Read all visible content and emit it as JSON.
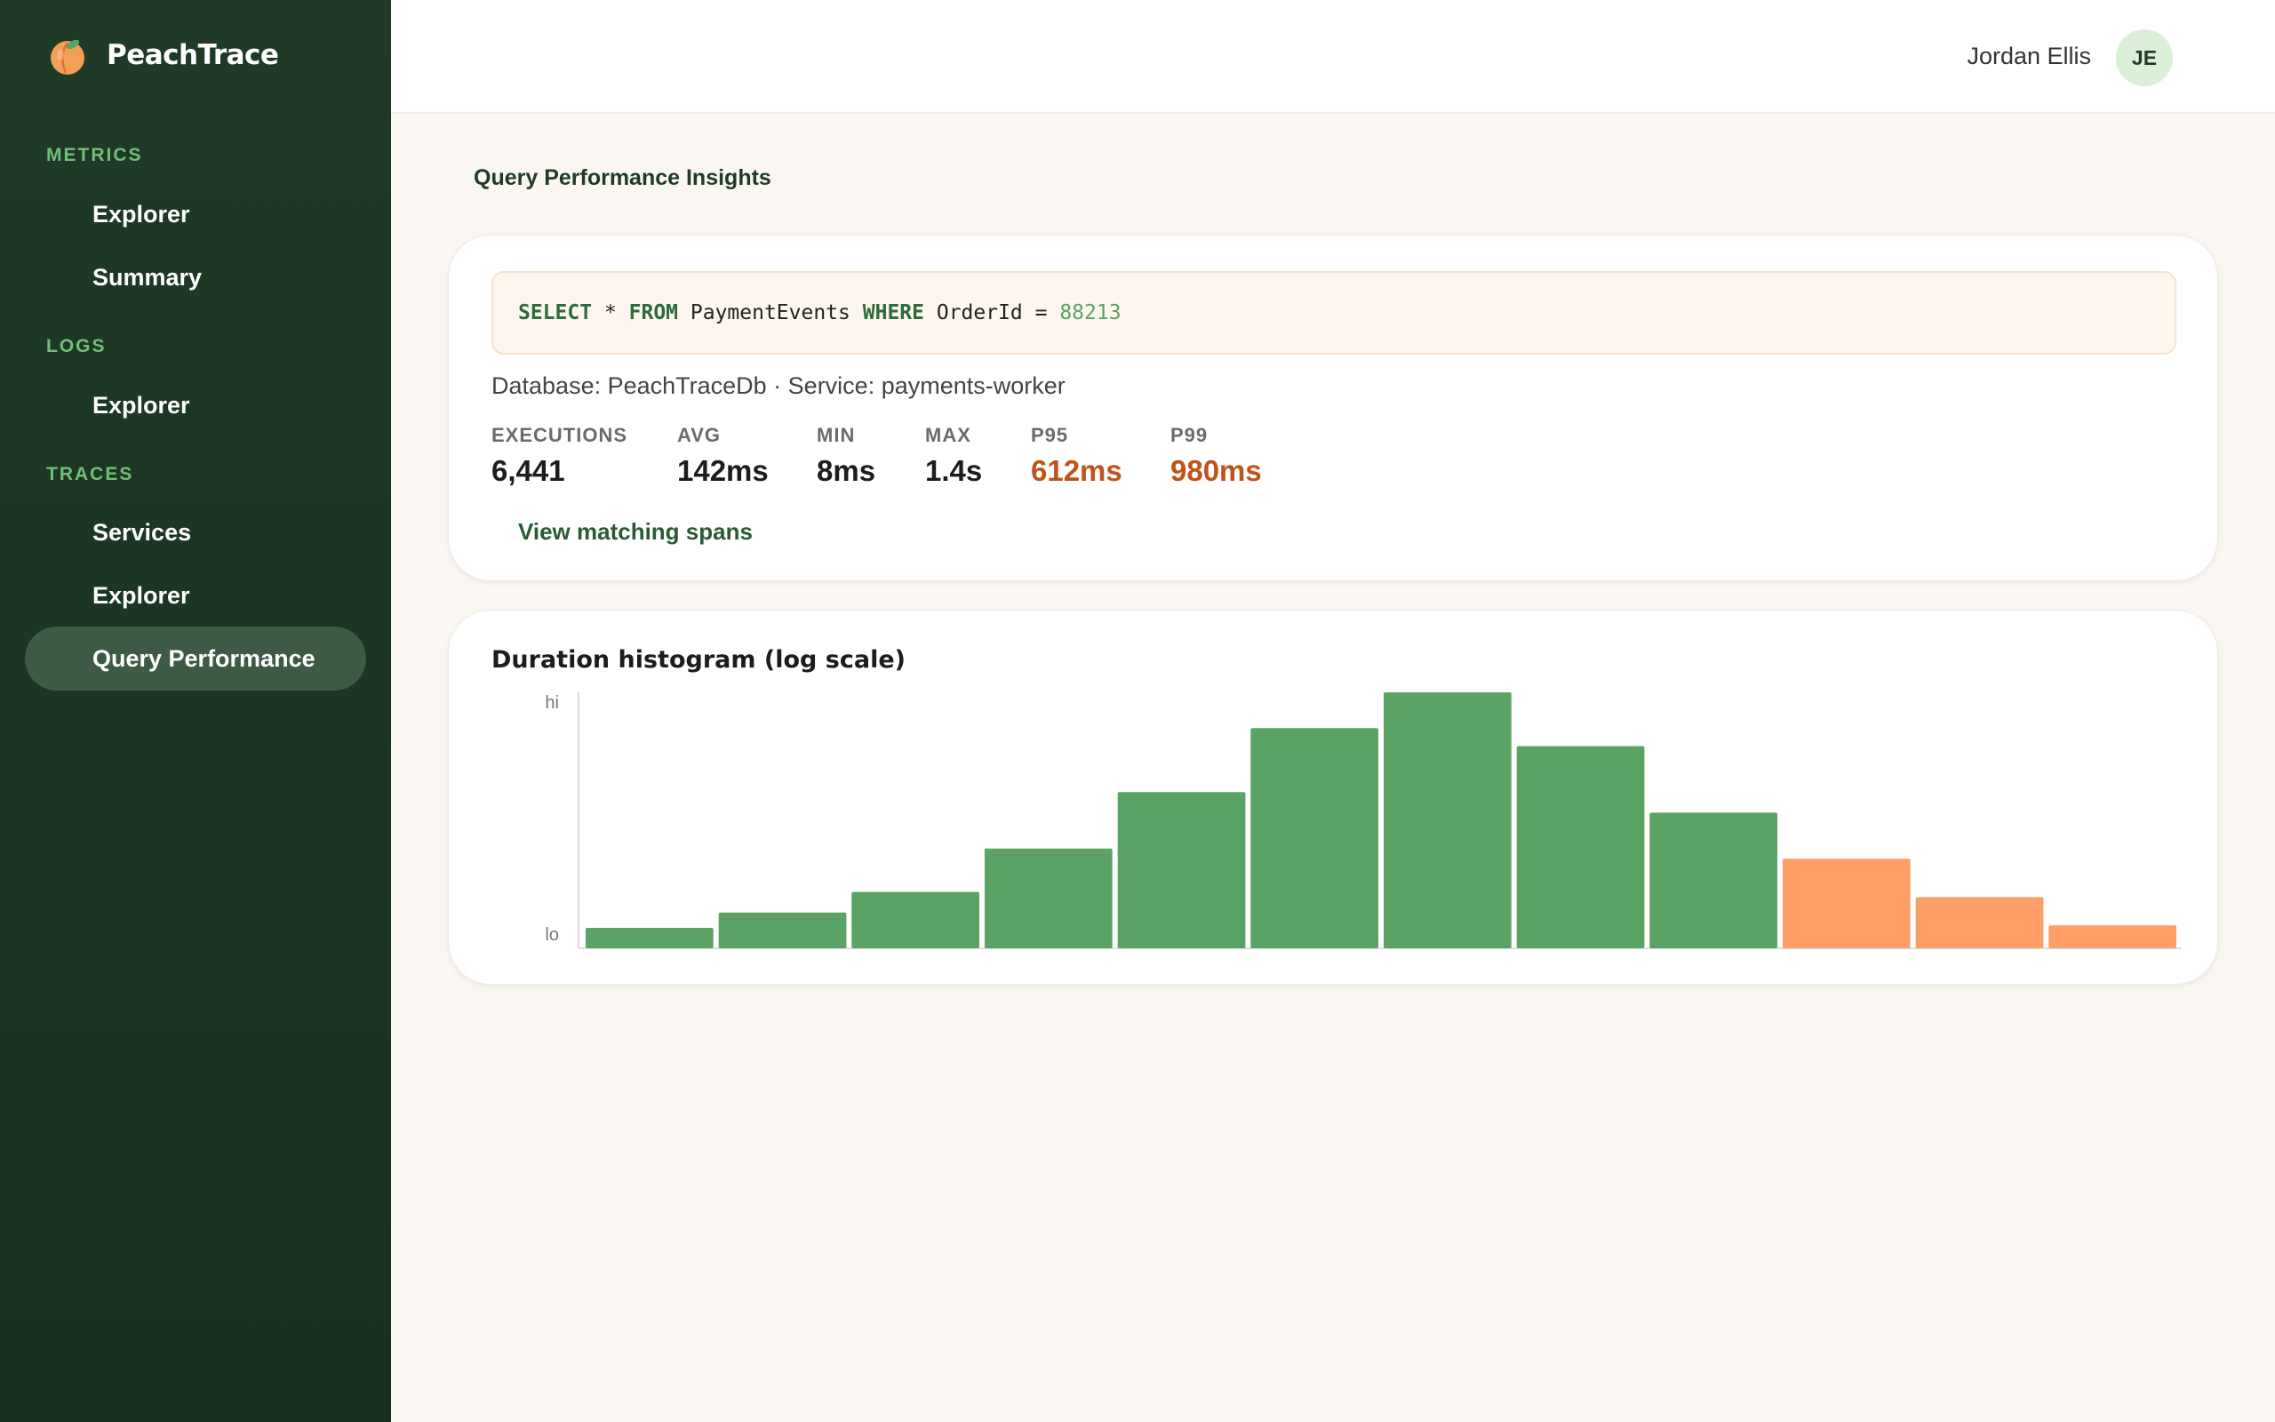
{
  "brand": {
    "name": "PeachTrace"
  },
  "sidebar": {
    "sections": [
      {
        "label": "METRICS",
        "items": [
          "Explorer",
          "Summary"
        ]
      },
      {
        "label": "LOGS",
        "items": [
          "Explorer"
        ]
      },
      {
        "label": "TRACES",
        "items": [
          "Services",
          "Explorer",
          "Query Performance"
        ]
      }
    ],
    "active_item": "Query Performance"
  },
  "user": {
    "name": "Jordan Ellis",
    "initials": "JE"
  },
  "page": {
    "title": "Query Performance Insights"
  },
  "query": {
    "sql_tokens": [
      {
        "t": "SELECT",
        "k": "kw"
      },
      {
        "t": " * ",
        "k": "plain"
      },
      {
        "t": "FROM",
        "k": "kw"
      },
      {
        "t": " PaymentEvents ",
        "k": "plain"
      },
      {
        "t": "WHERE",
        "k": "kw"
      },
      {
        "t": " OrderId = ",
        "k": "plain"
      },
      {
        "t": "88213",
        "k": "num"
      }
    ],
    "context": "Database: PeachTraceDb · Service: payments-worker",
    "stats": [
      {
        "label": "EXECUTIONS",
        "value": "6,441",
        "warn": false
      },
      {
        "label": "AVG",
        "value": "142ms",
        "warn": false
      },
      {
        "label": "MIN",
        "value": "8ms",
        "warn": false
      },
      {
        "label": "MAX",
        "value": "1.4s",
        "warn": false
      },
      {
        "label": "P95",
        "value": "612ms",
        "warn": true
      },
      {
        "label": "P99",
        "value": "980ms",
        "warn": true
      }
    ],
    "view_link": "View matching spans"
  },
  "histogram": {
    "title": "Duration histogram (log scale)",
    "chart_data": {
      "type": "bar",
      "title": "Duration histogram (log scale)",
      "y_scale": "log",
      "y_tick_labels": [
        "hi",
        "lo"
      ],
      "values": [
        0.08,
        0.14,
        0.22,
        0.39,
        0.61,
        0.86,
        1.0,
        0.79,
        0.53,
        0.35,
        0.2,
        0.09
      ],
      "highlight_from_index": 9,
      "colors": {
        "normal": "#5aa364",
        "tail": "#ff9e66",
        "axis": "#dddddd"
      }
    }
  },
  "colors": {
    "sidebar_bg": "#1f3a27",
    "accent": "#6fbf78",
    "warn": "#c0521a"
  }
}
